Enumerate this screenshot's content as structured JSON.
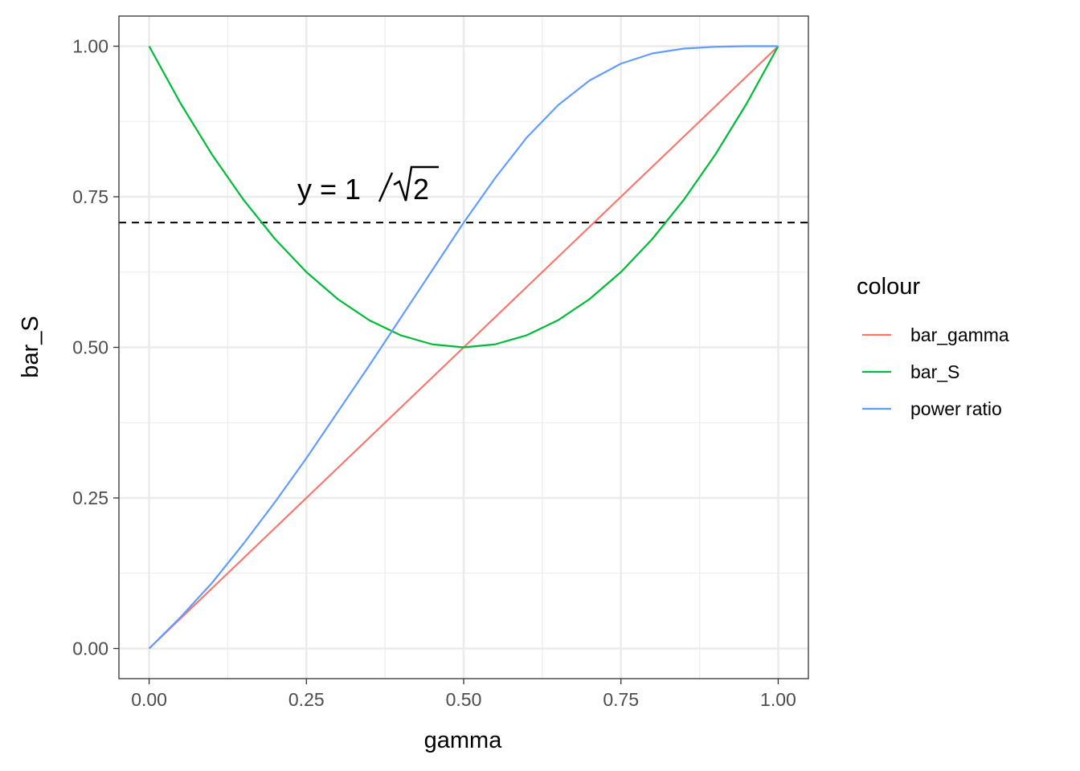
{
  "chart_data": {
    "type": "line",
    "title": "",
    "xlabel": "gamma",
    "ylabel": "bar_S",
    "xlim": [
      -0.048,
      1.048
    ],
    "ylim": [
      -0.05,
      1.05
    ],
    "x_ticks": [
      "0.00",
      "0.25",
      "0.50",
      "0.75",
      "1.00"
    ],
    "y_ticks": [
      "0.00",
      "0.25",
      "0.50",
      "0.75",
      "1.00"
    ],
    "grid": true,
    "legend": {
      "title": "colour",
      "position": "right"
    },
    "series": [
      {
        "name": "bar_gamma",
        "color": "#F8766D",
        "x": [
          0,
          0.1,
          0.2,
          0.3,
          0.4,
          0.5,
          0.6,
          0.7,
          0.8,
          0.9,
          1.0
        ],
        "y": [
          0,
          0.1,
          0.2,
          0.3,
          0.4,
          0.5,
          0.6,
          0.7,
          0.8,
          0.9,
          1.0
        ]
      },
      {
        "name": "bar_S",
        "color": "#00BA38",
        "x": [
          0,
          0.05,
          0.1,
          0.15,
          0.2,
          0.25,
          0.3,
          0.35,
          0.4,
          0.45,
          0.5,
          0.55,
          0.6,
          0.65,
          0.7,
          0.75,
          0.8,
          0.85,
          0.9,
          0.95,
          1.0
        ],
        "y": [
          1.0,
          0.905,
          0.82,
          0.745,
          0.68,
          0.625,
          0.58,
          0.545,
          0.52,
          0.505,
          0.5,
          0.505,
          0.52,
          0.545,
          0.58,
          0.625,
          0.68,
          0.745,
          0.82,
          0.905,
          1.0
        ]
      },
      {
        "name": "power ratio",
        "color": "#619CFF",
        "x": [
          0,
          0.05,
          0.1,
          0.15,
          0.2,
          0.25,
          0.3,
          0.35,
          0.4,
          0.45,
          0.5,
          0.55,
          0.6,
          0.65,
          0.7,
          0.75,
          0.8,
          0.85,
          0.9,
          0.95,
          1.0
        ],
        "y": [
          0,
          0.052,
          0.109,
          0.174,
          0.243,
          0.316,
          0.393,
          0.47,
          0.549,
          0.628,
          0.707,
          0.781,
          0.848,
          0.902,
          0.943,
          0.971,
          0.988,
          0.996,
          0.999,
          1.0,
          1.0
        ]
      }
    ],
    "reference_line": {
      "y": 0.7071,
      "style": "dashed",
      "color": "#000000"
    },
    "annotation": {
      "text_prefix": "y = 1",
      "radicand": "2",
      "x": 0.35,
      "y": 0.75
    }
  }
}
